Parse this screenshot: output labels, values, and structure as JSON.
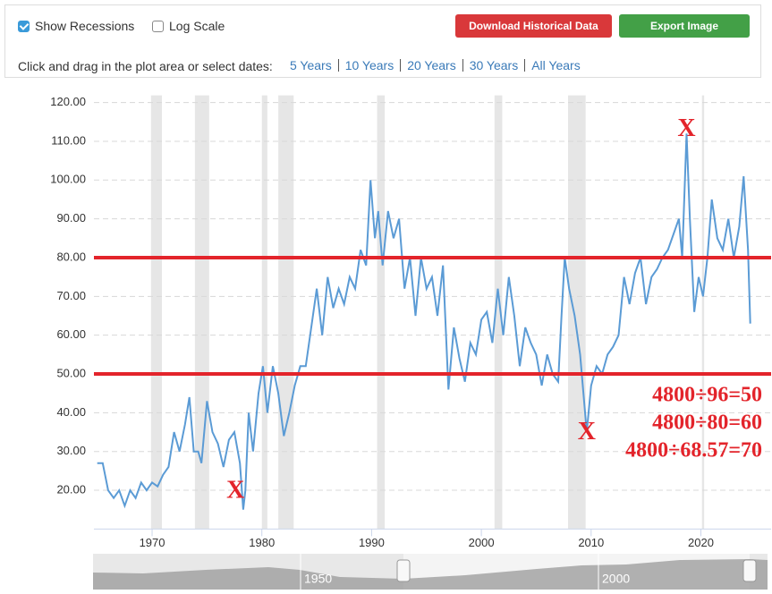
{
  "controls": {
    "recessions_label": "Show Recessions",
    "log_label": "Log Scale",
    "download": "Download Historical Data",
    "export": "Export Image",
    "prompt": "Click and drag in the plot area or select dates:",
    "ranges": [
      "5 Years",
      "10 Years",
      "20 Years",
      "30 Years",
      "All Years"
    ]
  },
  "chart_data": {
    "type": "line",
    "xlim": [
      1964.7,
      2026.4
    ],
    "xticks": [
      1970,
      1980,
      1990,
      2000,
      2010,
      2020
    ],
    "ylim": [
      10,
      120
    ],
    "yticks": [
      {
        "value": 20,
        "label": "20.00"
      },
      {
        "value": 30,
        "label": "30.00"
      },
      {
        "value": 40,
        "label": "40.00"
      },
      {
        "value": 50,
        "label": "50.00"
      },
      {
        "value": 60,
        "label": "60.00"
      },
      {
        "value": 70,
        "label": "70.00"
      },
      {
        "value": 80,
        "label": "80.00"
      },
      {
        "value": 90,
        "label": "90.00"
      },
      {
        "value": 100,
        "label": "100.00"
      },
      {
        "value": 110,
        "label": "110.00"
      },
      {
        "value": 120,
        "label": "120.00"
      }
    ],
    "grid": true,
    "recessions": [
      [
        1969.9,
        1970.9
      ],
      [
        1973.9,
        1975.2
      ],
      [
        1980.0,
        1980.5
      ],
      [
        1981.5,
        1982.9
      ],
      [
        1990.5,
        1991.2
      ],
      [
        2001.2,
        2001.9
      ],
      [
        2007.9,
        2009.5
      ],
      [
        2020.1,
        2020.3
      ]
    ],
    "series": [
      {
        "color": "#5b9bd5",
        "x": [
          1965.0,
          1965.5,
          1966,
          1966.5,
          1967,
          1967.5,
          1968,
          1968.5,
          1969,
          1969.5,
          1970,
          1970.5,
          1971,
          1971.5,
          1972,
          1972.5,
          1973,
          1973.4,
          1973.8,
          1974.2,
          1974.5,
          1975,
          1975.5,
          1976,
          1976.5,
          1977,
          1977.5,
          1978,
          1978.3,
          1978.5,
          1978.8,
          1979.2,
          1979.7,
          1980.1,
          1980.5,
          1981,
          1981.5,
          1982,
          1982.5,
          1983,
          1983.5,
          1984,
          1985,
          1985.5,
          1986,
          1986.5,
          1987,
          1987.5,
          1988,
          1988.5,
          1989,
          1989.5,
          1989.9,
          1990.3,
          1990.6,
          1991,
          1991.5,
          1992,
          1992.5,
          1993,
          1993.5,
          1994,
          1994.5,
          1995,
          1995.5,
          1996,
          1996.5,
          1997,
          1997.5,
          1998,
          1998.5,
          1999,
          1999.5,
          2000,
          2000.5,
          2001,
          2001.5,
          2002,
          2002.5,
          2003,
          2003.5,
          2004,
          2004.5,
          2005,
          2005.5,
          2006,
          2006.5,
          2007,
          2007.3,
          2007.6,
          2008,
          2008.5,
          2009,
          2009.3,
          2009.6,
          2010,
          2010.5,
          2011,
          2011.5,
          2012,
          2012.5,
          2013,
          2013.5,
          2014,
          2014.5,
          2015,
          2015.5,
          2016,
          2016.5,
          2017,
          2017.5,
          2018,
          2018.3,
          2018.7,
          2019,
          2019.4,
          2019.8,
          2020.2,
          2020.6,
          2021,
          2021.5,
          2022,
          2022.5,
          2023,
          2023.5,
          2023.9,
          2024.3,
          2024.5
        ],
        "values": [
          27,
          27,
          20,
          18,
          20,
          16,
          20,
          18,
          22,
          20,
          22,
          21,
          24,
          26,
          35,
          30,
          37,
          44,
          30,
          30,
          27,
          43,
          35,
          32,
          26,
          33,
          35,
          27,
          15,
          20,
          40,
          30,
          45,
          52,
          40,
          52,
          45,
          34,
          40,
          47,
          52,
          52,
          72,
          60,
          75,
          67,
          72,
          68,
          75,
          72,
          82,
          78,
          100,
          85,
          92,
          78,
          92,
          85,
          90,
          72,
          80,
          65,
          80,
          72,
          75,
          65,
          78,
          46,
          62,
          54,
          48,
          58,
          55,
          64,
          66,
          58,
          72,
          60,
          75,
          65,
          52,
          62,
          58,
          55,
          47,
          55,
          50,
          48,
          65,
          80,
          72,
          65,
          55,
          45,
          35,
          47,
          52,
          50,
          55,
          57,
          60,
          75,
          68,
          76,
          80,
          68,
          75,
          77,
          80,
          82,
          86,
          90,
          80,
          112,
          90,
          66,
          75,
          70,
          80,
          95,
          85,
          82,
          90,
          80,
          88,
          101,
          82,
          63
        ]
      }
    ],
    "hlines": [
      80,
      50
    ],
    "markers": [
      {
        "label": "X",
        "x": 1977.6,
        "y": 19.5
      },
      {
        "label": "X",
        "x": 2009.6,
        "y": 34.7
      },
      {
        "label": "X",
        "x": 2018.7,
        "y": 112.9
      }
    ],
    "annotations": [
      "4800÷96=50",
      "4800÷80=60",
      "4800÷68.57=70"
    ],
    "navigator": {
      "labels": [
        "1950",
        "2000"
      ]
    }
  }
}
